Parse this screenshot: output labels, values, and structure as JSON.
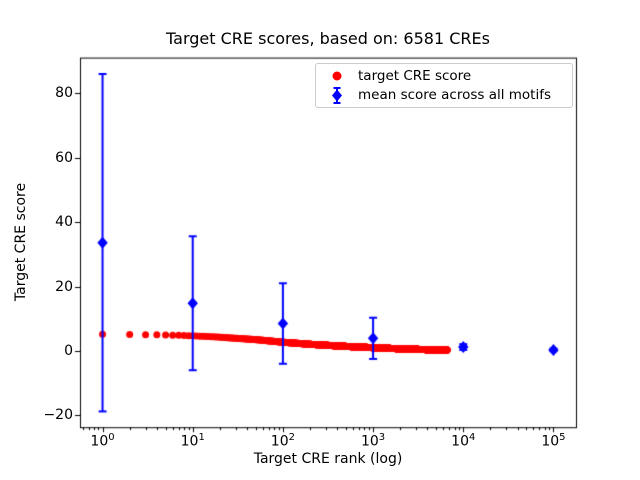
{
  "title": "Target CRE scores, based on: 6581 CREs",
  "axes": {
    "xlabel": "Target CRE rank (log)",
    "ylabel": "Target CRE score"
  },
  "legend": {
    "items": [
      {
        "label": "target CRE score",
        "marker": "circle",
        "color": "#ff0000"
      },
      {
        "label": "mean score across all motifs",
        "marker": "diamond-errorbar",
        "color": "#0000ff"
      }
    ]
  },
  "colors": {
    "red": "#ff0000",
    "blue": "#0000ff",
    "axis": "#000000",
    "legend_border": "#cccccc",
    "background": "#ffffff"
  },
  "chart_data": {
    "type": "scatter",
    "title": "Target CRE scores, based on: 6581 CREs",
    "xlabel": "Target CRE rank (log)",
    "ylabel": "Target CRE score",
    "x_scale": "log10",
    "xlim_log10": [
      -0.25,
      5.25
    ],
    "ylim": [
      -23.7,
      91.1
    ],
    "x_major_ticks_exponents": [
      0,
      1,
      2,
      3,
      4,
      5
    ],
    "y_ticks": [
      -20,
      0,
      20,
      40,
      60,
      80
    ],
    "grid": false,
    "legend_position": "upper right",
    "series": [
      {
        "name": "target CRE score",
        "type": "scatter",
        "color": "#ff0000",
        "marker": "circle",
        "n_points": 6581,
        "anchors_rank_score": [
          [
            1,
            5.2
          ],
          [
            2,
            5.1
          ],
          [
            3,
            5.05
          ],
          [
            5,
            4.95
          ],
          [
            10,
            4.7
          ],
          [
            20,
            4.25
          ],
          [
            50,
            3.5
          ],
          [
            100,
            2.7
          ],
          [
            200,
            2.05
          ],
          [
            500,
            1.4
          ],
          [
            1000,
            1.0
          ],
          [
            2000,
            0.65
          ],
          [
            4000,
            0.38
          ],
          [
            6581,
            0.25
          ]
        ]
      },
      {
        "name": "mean score across all motifs",
        "type": "errorbar",
        "color": "#0000ff",
        "marker": "diamond",
        "points": [
          {
            "rank": 1,
            "mean": 33.6,
            "err": 52.4
          },
          {
            "rank": 10,
            "mean": 14.8,
            "err": 20.8
          },
          {
            "rank": 100,
            "mean": 8.5,
            "err": 12.5
          },
          {
            "rank": 1000,
            "mean": 3.9,
            "err": 6.4
          },
          {
            "rank": 10000,
            "mean": 1.2,
            "err": 0.9
          },
          {
            "rank": 100000,
            "mean": 0.3,
            "err": 0.4
          }
        ]
      }
    ]
  }
}
